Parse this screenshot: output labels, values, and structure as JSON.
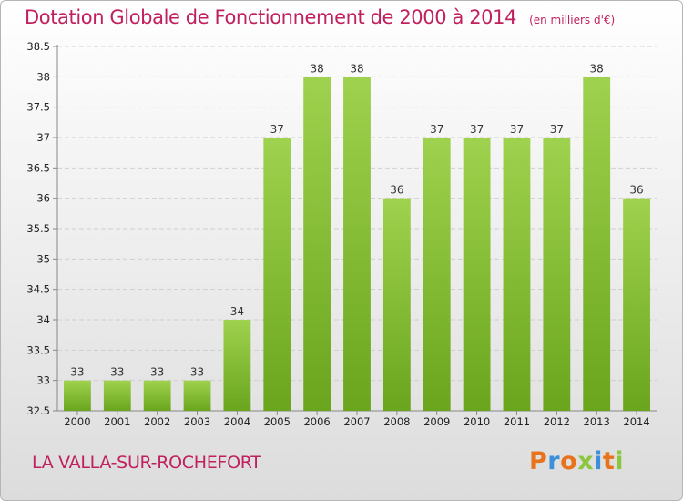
{
  "chart_data": {
    "type": "bar",
    "title": "Dotation Globale de Fonctionnement de 2000 à 2014",
    "unit": "(en milliers d'€)",
    "categories": [
      "2000",
      "2001",
      "2002",
      "2003",
      "2004",
      "2005",
      "2006",
      "2007",
      "2008",
      "2009",
      "2010",
      "2011",
      "2012",
      "2013",
      "2014"
    ],
    "values": [
      33,
      33,
      33,
      33,
      34,
      37,
      38,
      38,
      36,
      37,
      37,
      37,
      37,
      38,
      36
    ],
    "ylim": [
      32.5,
      38.5
    ],
    "yticks": [
      "32.5",
      "33",
      "33.5",
      "34",
      "34.5",
      "35",
      "35.5",
      "36",
      "36.5",
      "37",
      "37.5",
      "38",
      "38.5"
    ],
    "xlabel": "",
    "ylabel": "",
    "grid": true,
    "bar_color": "#8cc63f"
  },
  "footer": {
    "commune": "LA VALLA-SUR-ROCHEFORT",
    "brand": "Proxiti"
  },
  "colors": {
    "title": "#c0205e",
    "brand_letters": [
      "#e8731c",
      "#3c8fd8",
      "#e8731c",
      "#8cc63f",
      "#3c8fd8",
      "#e8731c",
      "#8cc63f"
    ]
  }
}
